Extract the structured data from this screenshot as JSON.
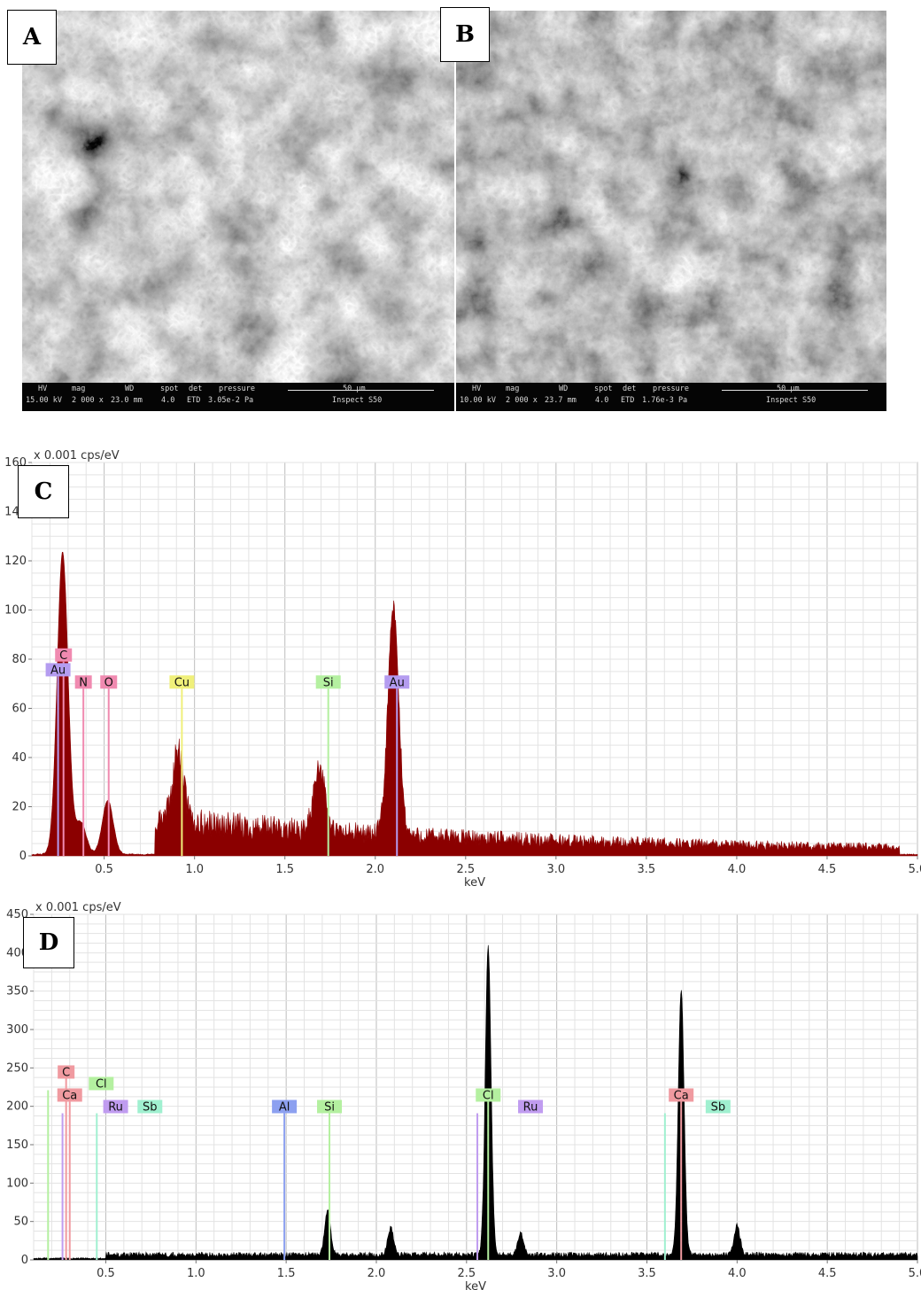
{
  "panels": {
    "A": {
      "label": "A"
    },
    "B": {
      "label": "B"
    },
    "C": {
      "label": "C"
    },
    "D": {
      "label": "D"
    }
  },
  "sem_A": {
    "hv_h": "HV",
    "hv_v": "15.00 kV",
    "mag_h": "mag",
    "mag_v": "2 000 x",
    "wd_h": "WD",
    "wd_v": "23.0 mm",
    "spot_h": "spot",
    "spot_v": "4.0",
    "det_h": "det",
    "det_v": "ETD",
    "pressure_h": "pressure",
    "pressure_v": "3.05e-2 Pa",
    "scale": "50 µm",
    "instrument": "Inspect S50"
  },
  "sem_B": {
    "hv_h": "HV",
    "hv_v": "10.00 kV",
    "mag_h": "mag",
    "mag_v": "2 000 x",
    "wd_h": "WD",
    "wd_v": "23.7 mm",
    "spot_h": "spot",
    "spot_v": "4.0",
    "det_h": "det",
    "det_v": "ETD",
    "pressure_h": "pressure",
    "pressure_v": "1.76e-3 Pa",
    "scale": "50 µm",
    "instrument": "Inspect S50"
  },
  "chart_data": [
    {
      "type": "area",
      "panel": "C",
      "unit_label": "x 0.001 cps/eV",
      "xlabel": "keV",
      "xlim": [
        0.1,
        5.0
      ],
      "ylim": [
        0,
        160
      ],
      "x_ticks": [
        0.5,
        1.0,
        1.5,
        2.0,
        2.5,
        3.0,
        3.5,
        4.0,
        4.5,
        5.0
      ],
      "x_tick_labels": [
        "0.5",
        "1.0",
        "1.5",
        "2.0",
        "2.5",
        "3.0",
        "3.5",
        "4.0",
        "4.5",
        "5.0"
      ],
      "y_ticks": [
        0,
        20,
        40,
        60,
        80,
        100,
        120,
        140,
        160
      ],
      "y_tick_labels": [
        "0",
        "20",
        "40",
        "60",
        "80",
        "100",
        "120",
        "140",
        "160"
      ],
      "fill_color": "#8b0000",
      "grid": true,
      "peaks": [
        {
          "x": 0.27,
          "y": 123
        },
        {
          "x": 0.37,
          "y": 13
        },
        {
          "x": 0.52,
          "y": 22
        },
        {
          "x": 0.91,
          "y": 29
        },
        {
          "x": 1.69,
          "y": 27
        },
        {
          "x": 2.1,
          "y": 92
        }
      ],
      "element_markers": [
        {
          "label": "C",
          "x": 0.275,
          "y": 79,
          "color": "#f08ab0"
        },
        {
          "label": "Au",
          "x": 0.245,
          "y": 73,
          "color": "#b49cf0"
        },
        {
          "label": "N",
          "x": 0.385,
          "y": 68,
          "color": "#f08ab0"
        },
        {
          "label": "O",
          "x": 0.525,
          "y": 68,
          "color": "#f08ab0"
        },
        {
          "label": "Cu",
          "x": 0.93,
          "y": 68,
          "color": "#f0f07a"
        },
        {
          "label": "Si",
          "x": 1.74,
          "y": 68,
          "color": "#b4f0a0"
        },
        {
          "label": "Au",
          "x": 2.12,
          "y": 68,
          "color": "#b49cf0"
        }
      ]
    },
    {
      "type": "area",
      "panel": "D",
      "unit_label": "x 0.001 cps/eV",
      "xlabel": "keV",
      "xlim": [
        0.1,
        5.0
      ],
      "ylim": [
        0,
        450
      ],
      "x_ticks": [
        0.5,
        1.0,
        1.5,
        2.0,
        2.5,
        3.0,
        3.5,
        4.0,
        4.5,
        5.0
      ],
      "x_tick_labels": [
        "0.5",
        "1.0",
        "1.5",
        "2.0",
        "2.5",
        "3.0",
        "3.5",
        "4.0",
        "4.5",
        "5.0"
      ],
      "y_ticks": [
        0,
        50,
        100,
        150,
        200,
        250,
        300,
        350,
        400,
        450
      ],
      "y_tick_labels": [
        "0",
        "50",
        "100",
        "150",
        "200",
        "250",
        "300",
        "350",
        "400",
        "450"
      ],
      "fill_color": "#000000",
      "grid": true,
      "peaks": [
        {
          "x": 1.73,
          "y": 58
        },
        {
          "x": 2.08,
          "y": 35
        },
        {
          "x": 2.62,
          "y": 400
        },
        {
          "x": 2.8,
          "y": 28
        },
        {
          "x": 3.69,
          "y": 345
        },
        {
          "x": 4.0,
          "y": 38
        }
      ],
      "element_markers": [
        {
          "label": "C",
          "x": 0.28,
          "y": 236,
          "color": "#f09aa0"
        },
        {
          "label": "Cl",
          "x": 0.18,
          "y": 221,
          "color": "#b4f0a0"
        },
        {
          "label": "Ca",
          "x": 0.3,
          "y": 206,
          "color": "#f09aa0"
        },
        {
          "label": "Ru",
          "x": 0.26,
          "y": 191,
          "color": "#c09cf0"
        },
        {
          "label": "Sb",
          "x": 0.45,
          "y": 191,
          "color": "#a0f0d0"
        },
        {
          "label": "Al",
          "x": 1.49,
          "y": 191,
          "color": "#8ca0f0"
        },
        {
          "label": "Si",
          "x": 1.74,
          "y": 191,
          "color": "#b4f0a0"
        },
        {
          "label": "Cl",
          "x": 2.62,
          "y": 206,
          "color": "#b4f0a0"
        },
        {
          "label": "Ru",
          "x": 2.56,
          "y": 191,
          "color": "#c09cf0"
        },
        {
          "label": "Ca",
          "x": 3.69,
          "y": 206,
          "color": "#f09aa0"
        },
        {
          "label": "Sb",
          "x": 3.6,
          "y": 191,
          "color": "#a0f0d0"
        }
      ]
    }
  ]
}
